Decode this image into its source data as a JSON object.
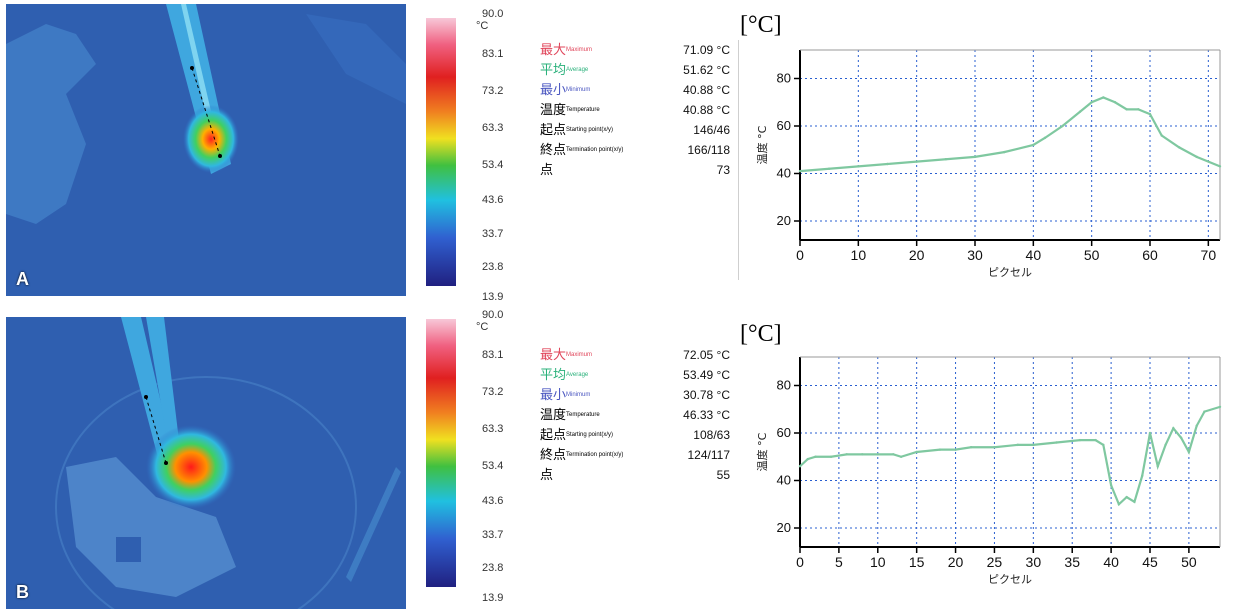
{
  "colors": {
    "thermal_bg": "#2f5fb0",
    "line": "#7fc8a0",
    "grid": "#2a5fd0"
  },
  "scale": {
    "unit": "°C",
    "ticks": [
      "90.0",
      "83.1",
      "73.2",
      "63.3",
      "53.4",
      "43.6",
      "33.7",
      "23.8",
      "13.9"
    ]
  },
  "panels": [
    {
      "letter": "A",
      "stats": [
        {
          "jp": "最大",
          "en": "Maximum",
          "value": "71.09 °C",
          "color": "#e0455a"
        },
        {
          "jp": "平均",
          "en": "Average",
          "value": "51.62 °C",
          "color": "#28b07a"
        },
        {
          "jp": "最小",
          "en": "Minimum",
          "value": "40.88 °C",
          "color": "#4a56c0"
        },
        {
          "jp": "温度",
          "en": "Temperature",
          "value": "40.88 °C",
          "color": "#222222"
        },
        {
          "jp": "起点",
          "en": "Starting point(x/y)",
          "value": "146/46",
          "color": "#222222"
        },
        {
          "jp": "終点",
          "en": "Termination point(x/y)",
          "value": "166/118",
          "color": "#222222"
        },
        {
          "jp": "点",
          "en": "",
          "value": "73",
          "color": "#222222"
        }
      ],
      "unit_label": "[°C]"
    },
    {
      "letter": "B",
      "stats": [
        {
          "jp": "最大",
          "en": "Maximum",
          "value": "72.05 °C",
          "color": "#e0455a"
        },
        {
          "jp": "平均",
          "en": "Average",
          "value": "53.49 °C",
          "color": "#28b07a"
        },
        {
          "jp": "最小",
          "en": "Minimum",
          "value": "30.78 °C",
          "color": "#4a56c0"
        },
        {
          "jp": "温度",
          "en": "Temperature",
          "value": "46.33 °C",
          "color": "#222222"
        },
        {
          "jp": "起点",
          "en": "Starting point(x/y)",
          "value": "108/63",
          "color": "#222222"
        },
        {
          "jp": "終点",
          "en": "Termination point(x/y)",
          "value": "124/117",
          "color": "#222222"
        },
        {
          "jp": "点",
          "en": "",
          "value": "55",
          "color": "#222222"
        }
      ],
      "unit_label": "[°C]"
    }
  ],
  "chart_data": [
    {
      "type": "line",
      "xlabel": "ピクセル",
      "ylabel": "温度 °C",
      "xlim": [
        0,
        72
      ],
      "ylim": [
        12,
        92
      ],
      "xticks": [
        0,
        10,
        20,
        30,
        40,
        50,
        60,
        70
      ],
      "yticks": [
        20,
        40,
        60,
        80
      ],
      "grid": true,
      "x": [
        0,
        5,
        10,
        15,
        20,
        25,
        30,
        35,
        40,
        42,
        45,
        48,
        50,
        52,
        54,
        56,
        58,
        60,
        62,
        65,
        68,
        72
      ],
      "y": [
        41,
        42,
        43,
        44,
        45,
        46,
        47,
        49,
        52,
        55,
        60,
        66,
        70,
        72,
        70,
        67,
        67,
        65,
        56,
        51,
        47,
        43
      ]
    },
    {
      "type": "line",
      "xlabel": "ピクセル",
      "ylabel": "温度 °C",
      "xlim": [
        0,
        54
      ],
      "ylim": [
        12,
        92
      ],
      "xticks": [
        0,
        5,
        10,
        15,
        20,
        25,
        30,
        35,
        40,
        45,
        50
      ],
      "yticks": [
        20,
        40,
        60,
        80
      ],
      "grid": true,
      "x": [
        0,
        1,
        2,
        4,
        6,
        8,
        10,
        12,
        13,
        15,
        18,
        20,
        22,
        25,
        28,
        30,
        33,
        36,
        38,
        39,
        40,
        41,
        42,
        43,
        44,
        45,
        46,
        47,
        48,
        49,
        50,
        51,
        52,
        54
      ],
      "y": [
        46,
        49,
        50,
        50,
        51,
        51,
        51,
        51,
        50,
        52,
        53,
        53,
        54,
        54,
        55,
        55,
        56,
        57,
        57,
        55,
        38,
        30,
        33,
        31,
        42,
        60,
        46,
        55,
        62,
        58,
        52,
        63,
        69,
        71
      ]
    }
  ]
}
